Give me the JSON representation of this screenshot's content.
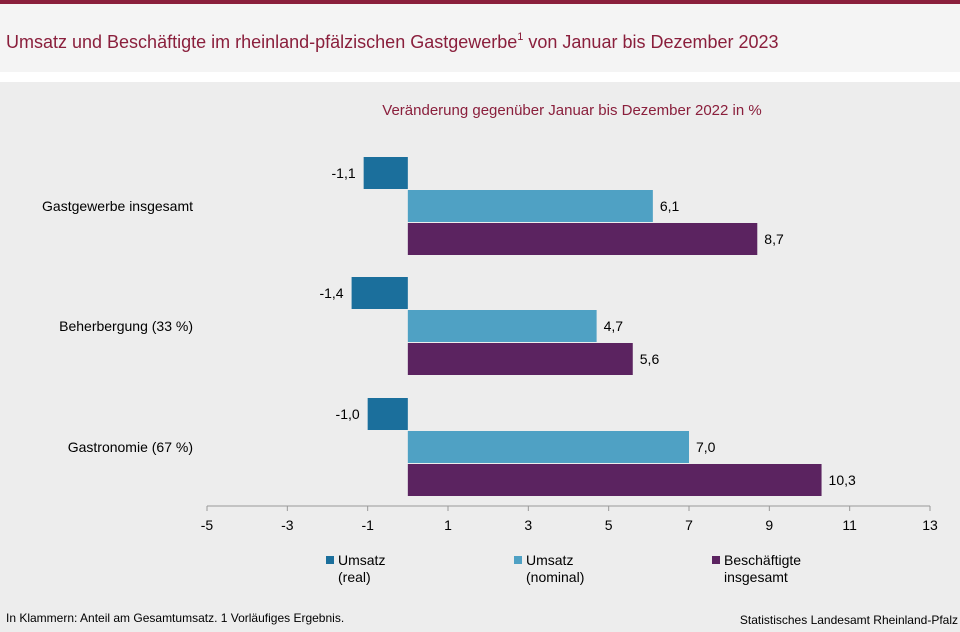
{
  "header": {
    "title": "Umsatz und Beschäftigte im rheinland-pfälzischen Gastgewerbe",
    "title_sup": "1",
    "title_suffix": " von Januar bis Dezember 2023"
  },
  "chart_data": {
    "type": "bar",
    "orientation": "horizontal",
    "subtitle": "Veränderung gegenüber Januar bis Dezember 2022 in %",
    "categories": [
      "Gastgewerbe insgesamt",
      "Beherbergung (33 %)",
      "Gastronomie (67 %)"
    ],
    "series": [
      {
        "name": "Umsatz (real)",
        "legend_lines": [
          "Umsatz",
          "(real)"
        ],
        "color": "#1b6f9c",
        "values": [
          -1.1,
          -1.4,
          -1.0
        ],
        "labels": [
          "-1,1",
          "-1,4",
          "-1,0"
        ]
      },
      {
        "name": "Umsatz (nominal)",
        "legend_lines": [
          "Umsatz",
          "(nominal)"
        ],
        "color": "#4fa1c4",
        "values": [
          6.1,
          4.7,
          7.0
        ],
        "labels": [
          "6,1",
          "4,7",
          "7,0"
        ]
      },
      {
        "name": "Beschäftigte insgesamt",
        "legend_lines": [
          "Beschäftigte",
          "insgesamt"
        ],
        "color": "#5b2360",
        "values": [
          8.7,
          5.6,
          10.3
        ],
        "labels": [
          "8,7",
          "5,6",
          "10,3"
        ]
      }
    ],
    "xlim": [
      -5,
      13
    ],
    "xticks": [
      -5,
      -3,
      -1,
      1,
      3,
      5,
      7,
      9,
      11,
      13
    ],
    "grid": false,
    "legend_position": "bottom"
  },
  "footer": {
    "note": "In Klammern: Anteil am Gesamtumsatz. 1 Vorläufiges  Ergebnis.",
    "source": "Statistisches Landesamt Rheinland-Pfalz"
  }
}
